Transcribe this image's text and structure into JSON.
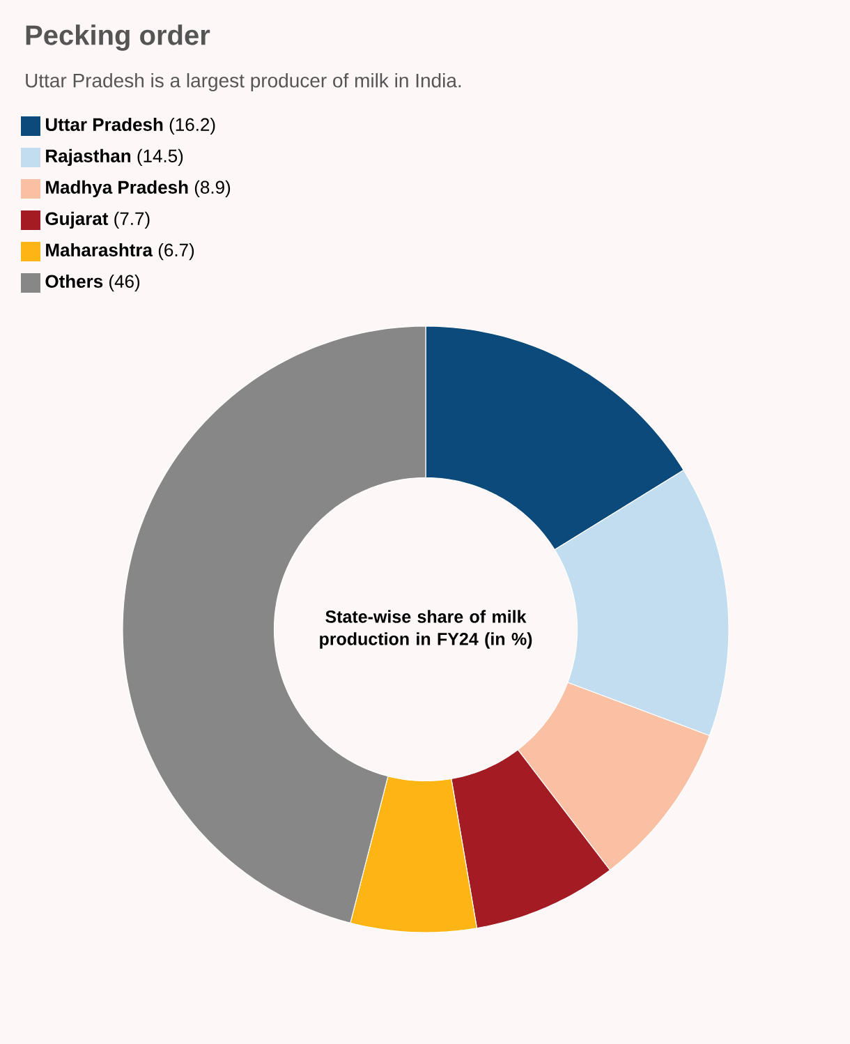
{
  "chart_data": {
    "type": "donut",
    "title": "Pecking order",
    "subtitle": "Uttar Pradesh is a largest producer of milk in India.",
    "categories": [
      "Uttar Pradesh",
      "Rajasthan",
      "Madhya Pradesh",
      "Gujarat",
      "Maharashtra",
      "Others"
    ],
    "values": [
      16.2,
      14.5,
      8.9,
      7.7,
      6.7,
      46
    ],
    "value_labels": [
      "(16.2)",
      "(14.5)",
      "(8.9)",
      "(7.7)",
      "(6.7)",
      "(46)"
    ],
    "colors": [
      "#0b4a7a",
      "#c2ddef",
      "#f9c0a3",
      "#a31c23",
      "#fdb515",
      "#878787"
    ],
    "annotations": [
      "State-wise share of milk production in FY24 (in %)"
    ],
    "legend": "top left"
  }
}
